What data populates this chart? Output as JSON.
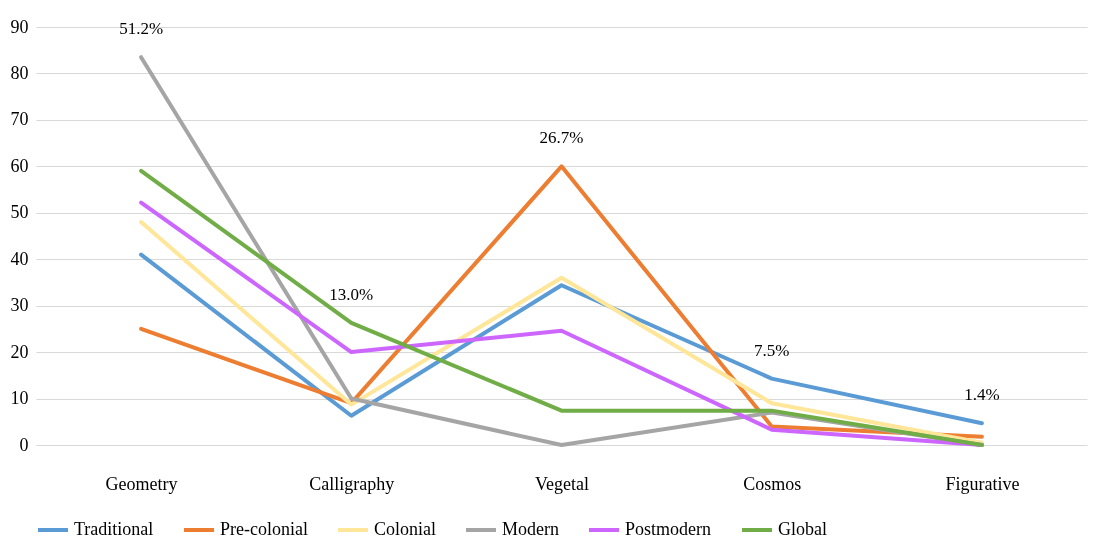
{
  "chart_data": {
    "type": "line",
    "categories": [
      "Geometry",
      "Calligraphy",
      "Vegetal",
      "Cosmos",
      "Figurative"
    ],
    "series": [
      {
        "name": "Traditional",
        "color": "#5b9bd5",
        "values": [
          41,
          6.3,
          34.4,
          14.3,
          4.7
        ]
      },
      {
        "name": "Pre-colonial",
        "color": "#ed7d31",
        "values": [
          25,
          9,
          60,
          4,
          1.8
        ]
      },
      {
        "name": "Colonial",
        "color": "#ffe699",
        "values": [
          48,
          8.7,
          36,
          9,
          0.5
        ]
      },
      {
        "name": "Modern",
        "color": "#a5a5a5",
        "values": [
          83.5,
          10,
          0,
          7,
          0
        ]
      },
      {
        "name": "Postmodern",
        "color": "#cc66ff",
        "values": [
          52.2,
          20,
          24.6,
          3.3,
          0
        ]
      },
      {
        "name": "Global",
        "color": "#70ad47",
        "values": [
          59,
          26.3,
          7.4,
          7.4,
          0
        ]
      }
    ],
    "annotations": [
      "51.2%",
      "13.0%",
      "26.7%",
      "7.5%",
      "1.4%"
    ],
    "ylim": [
      0,
      90
    ],
    "yticks": [
      0,
      10,
      20,
      30,
      40,
      50,
      60,
      70,
      80,
      90
    ],
    "grid": "y",
    "legend": "bottom",
    "marker": "none",
    "line_style": "solid"
  }
}
